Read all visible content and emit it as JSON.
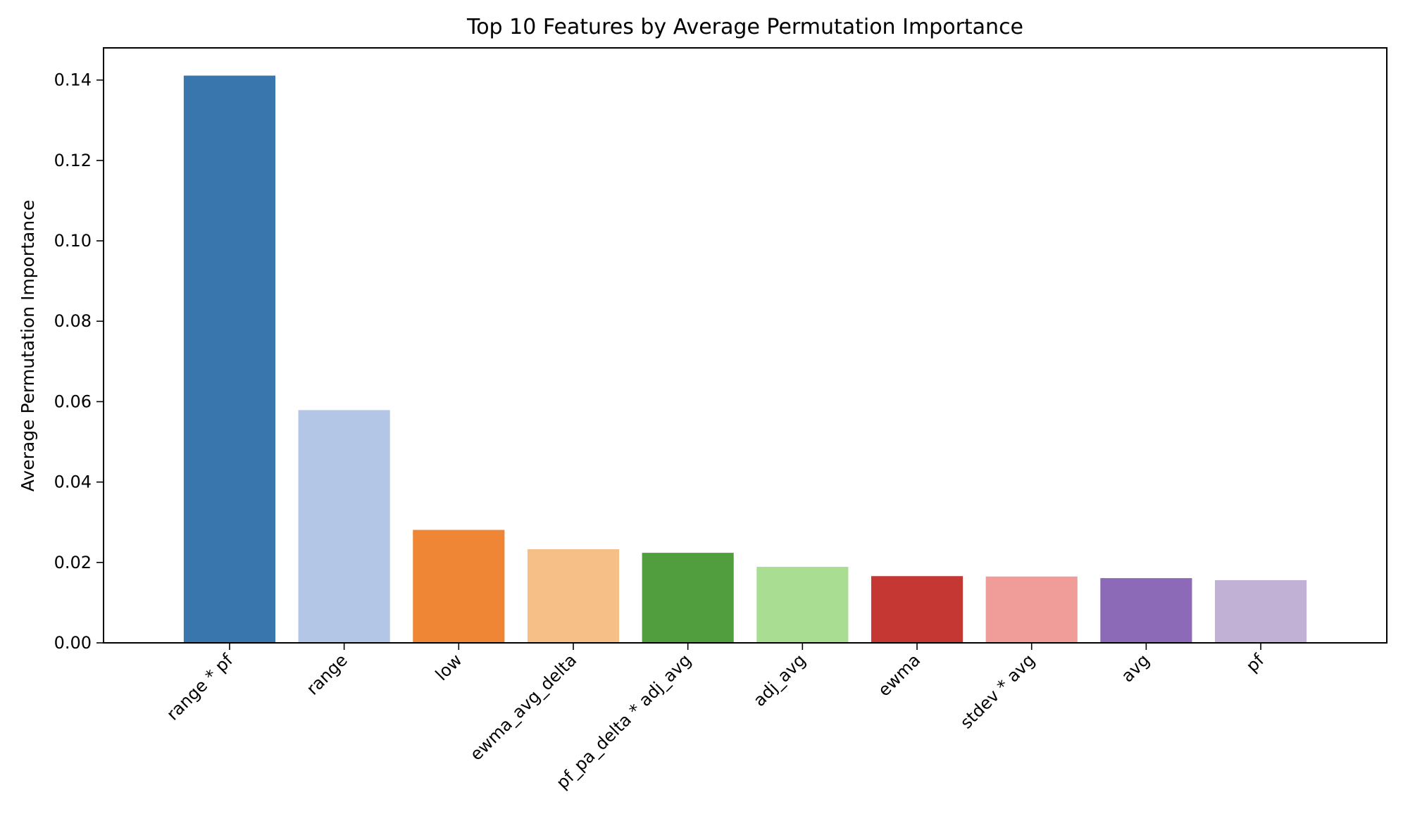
{
  "chart_data": {
    "type": "bar",
    "title": "Top 10 Features by Average Permutation Importance",
    "xlabel": "",
    "ylabel": "Average Permutation Importance",
    "categories": [
      "range * pf",
      "range",
      "low",
      "ewma_avg_delta",
      "pf_pa_delta * adj_avg",
      "adj_avg",
      "ewma",
      "stdev * avg",
      "avg",
      "pf"
    ],
    "values": [
      0.1411,
      0.0579,
      0.0281,
      0.0233,
      0.0224,
      0.0189,
      0.0166,
      0.0165,
      0.0161,
      0.0156
    ],
    "colors": [
      "#3a76ae",
      "#b3c6e6",
      "#ef8636",
      "#f5bf87",
      "#519e3e",
      "#a9dd92",
      "#c43732",
      "#f09c99",
      "#8d6ab7",
      "#c1b1d4"
    ],
    "ylim": [
      0,
      0.148
    ],
    "yticks": [
      "0.00",
      "0.02",
      "0.04",
      "0.06",
      "0.08",
      "0.10",
      "0.12",
      "0.14"
    ],
    "grid": false,
    "legend": "none"
  }
}
